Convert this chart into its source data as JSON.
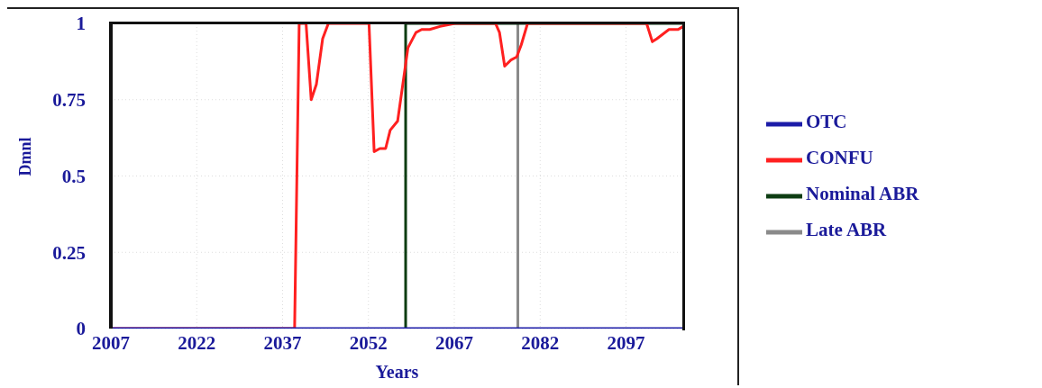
{
  "chart_data": {
    "type": "line",
    "xlabel": "Years",
    "ylabel": "Dmnl",
    "xlim": [
      2007,
      2107
    ],
    "xticks": [
      2007,
      2022,
      2037,
      2052,
      2067,
      2082,
      2097
    ],
    "ylim": [
      0,
      1
    ],
    "yticks": [
      0,
      0.25,
      0.5,
      0.75,
      1
    ],
    "grid": true,
    "legend": "right",
    "marker": "none",
    "line_style": "solid",
    "series": [
      {
        "name": "OTC",
        "color": "#1c1ca8",
        "x": [
          2007,
          2107
        ],
        "values": [
          0,
          0
        ]
      },
      {
        "name": "CONFU",
        "color": "#ff2020",
        "x": [
          2007,
          2039.1,
          2039.9,
          2041.1,
          2042.0,
          2042.9,
          2044.0,
          2045.0,
          2052.1,
          2053.0,
          2054.0,
          2055.0,
          2055.8,
          2057.1,
          2058.9,
          2060.3,
          2061.3,
          2062.7,
          2064.5,
          2067.1,
          2074.2,
          2074.9,
          2075.8,
          2076.9,
          2077.9,
          2078.7,
          2079.8,
          2100.6,
          2101.6,
          2102.4,
          2104.5,
          2106.1,
          2107
        ],
        "values": [
          0,
          0,
          1,
          1,
          0.75,
          0.8,
          0.95,
          1,
          1,
          0.58,
          0.59,
          0.59,
          0.65,
          0.68,
          0.92,
          0.97,
          0.98,
          0.98,
          0.99,
          1,
          1,
          0.97,
          0.86,
          0.88,
          0.89,
          0.93,
          1,
          1,
          0.94,
          0.95,
          0.98,
          0.98,
          0.99
        ]
      },
      {
        "name": "Nominal ABR",
        "color": "#0d3d12",
        "x": [
          2058.5,
          2058.5,
          2107
        ],
        "values": [
          0,
          1,
          1
        ]
      },
      {
        "name": "Late ABR",
        "color": "#8a8a8a",
        "x": [
          2078.1,
          2078.1
        ],
        "values": [
          0,
          1
        ]
      }
    ]
  }
}
